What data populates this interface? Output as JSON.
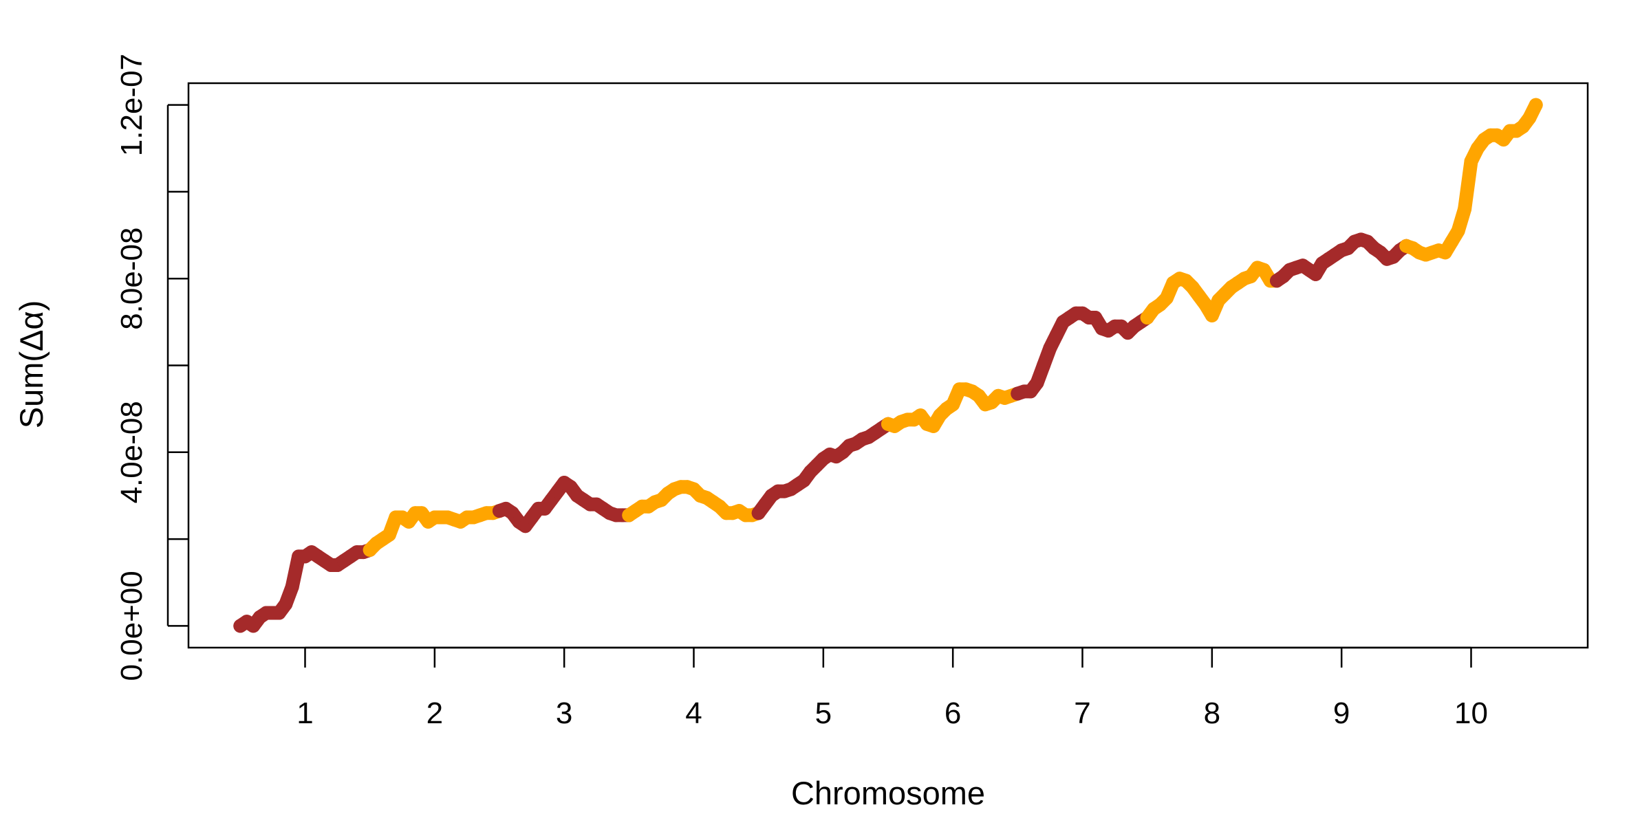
{
  "chart_data": {
    "type": "line",
    "xlabel": "Chromosome",
    "ylabel": "Sum(Δα)",
    "x_ticks": [
      "1",
      "2",
      "3",
      "4",
      "5",
      "6",
      "7",
      "8",
      "9",
      "10"
    ],
    "y_tick_values": [
      0,
      2e-08,
      4e-08,
      6e-08,
      8e-08,
      1e-07,
      1.2e-07
    ],
    "y_tick_labels": [
      "0.0e+00",
      "",
      "4.0e-08",
      "",
      "8.0e-08",
      "",
      "1.2e-07"
    ],
    "xlim": [
      0.1,
      10.9
    ],
    "ylim": [
      -5e-09,
      1.25e-07
    ],
    "colors": {
      "odd": "#A52A2A",
      "even": "#FFA500"
    },
    "grid": false,
    "legend": "none",
    "series": [
      {
        "chromosome": 1,
        "color": "#A52A2A",
        "x": [
          0.5,
          0.55,
          0.6,
          0.65,
          0.7,
          0.75,
          0.8,
          0.85,
          0.9,
          0.95,
          1.0,
          1.05,
          1.1,
          1.15,
          1.2,
          1.25,
          1.3,
          1.35,
          1.4,
          1.45,
          1.5
        ],
        "y": [
          0,
          1e-09,
          0,
          2e-09,
          3e-09,
          3e-09,
          3e-09,
          5e-09,
          9e-09,
          1.6e-08,
          1.6e-08,
          1.7e-08,
          1.6e-08,
          1.5e-08,
          1.4e-08,
          1.4e-08,
          1.5e-08,
          1.6e-08,
          1.7e-08,
          1.7e-08,
          1.75e-08
        ]
      },
      {
        "chromosome": 2,
        "color": "#FFA500",
        "x": [
          1.5,
          1.55,
          1.6,
          1.65,
          1.7,
          1.75,
          1.8,
          1.85,
          1.9,
          1.95,
          2.0,
          2.05,
          2.1,
          2.15,
          2.2,
          2.25,
          2.3,
          2.35,
          2.4,
          2.45,
          2.5
        ],
        "y": [
          1.75e-08,
          1.9e-08,
          2e-08,
          2.1e-08,
          2.5e-08,
          2.5e-08,
          2.4e-08,
          2.6e-08,
          2.6e-08,
          2.4e-08,
          2.5e-08,
          2.5e-08,
          2.5e-08,
          2.45e-08,
          2.4e-08,
          2.5e-08,
          2.5e-08,
          2.55e-08,
          2.6e-08,
          2.6e-08,
          2.65e-08
        ]
      },
      {
        "chromosome": 3,
        "color": "#A52A2A",
        "x": [
          2.5,
          2.55,
          2.6,
          2.65,
          2.7,
          2.75,
          2.8,
          2.85,
          2.9,
          2.95,
          3.0,
          3.05,
          3.1,
          3.15,
          3.2,
          3.25,
          3.3,
          3.35,
          3.4,
          3.45,
          3.5
        ],
        "y": [
          2.65e-08,
          2.7e-08,
          2.6e-08,
          2.4e-08,
          2.3e-08,
          2.5e-08,
          2.7e-08,
          2.7e-08,
          2.9e-08,
          3.1e-08,
          3.3e-08,
          3.2e-08,
          3e-08,
          2.9e-08,
          2.8e-08,
          2.8e-08,
          2.7e-08,
          2.6e-08,
          2.55e-08,
          2.55e-08,
          2.55e-08
        ]
      },
      {
        "chromosome": 4,
        "color": "#FFA500",
        "x": [
          3.5,
          3.55,
          3.6,
          3.65,
          3.7,
          3.75,
          3.8,
          3.85,
          3.9,
          3.95,
          4.0,
          4.05,
          4.1,
          4.15,
          4.2,
          4.25,
          4.3,
          4.35,
          4.4,
          4.45,
          4.5
        ],
        "y": [
          2.55e-08,
          2.65e-08,
          2.75e-08,
          2.75e-08,
          2.85e-08,
          2.9e-08,
          3.05e-08,
          3.15e-08,
          3.2e-08,
          3.2e-08,
          3.15e-08,
          3e-08,
          2.95e-08,
          2.85e-08,
          2.75e-08,
          2.6e-08,
          2.6e-08,
          2.65e-08,
          2.55e-08,
          2.55e-08,
          2.6e-08
        ]
      },
      {
        "chromosome": 5,
        "color": "#A52A2A",
        "x": [
          4.5,
          4.55,
          4.6,
          4.65,
          4.7,
          4.75,
          4.8,
          4.85,
          4.9,
          4.95,
          5.0,
          5.05,
          5.1,
          5.15,
          5.2,
          5.25,
          5.3,
          5.35,
          5.4,
          5.45,
          5.5
        ],
        "y": [
          2.6e-08,
          2.8e-08,
          3e-08,
          3.1e-08,
          3.1e-08,
          3.15e-08,
          3.25e-08,
          3.35e-08,
          3.55e-08,
          3.7e-08,
          3.85e-08,
          3.95e-08,
          3.9e-08,
          4e-08,
          4.15e-08,
          4.2e-08,
          4.3e-08,
          4.35e-08,
          4.45e-08,
          4.55e-08,
          4.65e-08
        ]
      },
      {
        "chromosome": 6,
        "color": "#FFA500",
        "x": [
          5.5,
          5.55,
          5.6,
          5.65,
          5.7,
          5.75,
          5.8,
          5.85,
          5.9,
          5.95,
          6.0,
          6.05,
          6.1,
          6.15,
          6.2,
          6.25,
          6.3,
          6.35,
          6.4,
          6.45,
          6.5
        ],
        "y": [
          4.65e-08,
          4.6e-08,
          4.7e-08,
          4.75e-08,
          4.75e-08,
          4.85e-08,
          4.65e-08,
          4.6e-08,
          4.85e-08,
          5e-08,
          5.1e-08,
          5.45e-08,
          5.45e-08,
          5.4e-08,
          5.3e-08,
          5.1e-08,
          5.15e-08,
          5.3e-08,
          5.25e-08,
          5.3e-08,
          5.35e-08
        ]
      },
      {
        "chromosome": 7,
        "color": "#A52A2A",
        "x": [
          6.5,
          6.55,
          6.6,
          6.65,
          6.7,
          6.75,
          6.8,
          6.85,
          6.9,
          6.95,
          7.0,
          7.05,
          7.1,
          7.15,
          7.2,
          7.25,
          7.3,
          7.35,
          7.4,
          7.45,
          7.5
        ],
        "y": [
          5.35e-08,
          5.4e-08,
          5.4e-08,
          5.6e-08,
          6e-08,
          6.4e-08,
          6.7e-08,
          7e-08,
          7.1e-08,
          7.2e-08,
          7.2e-08,
          7.1e-08,
          7.1e-08,
          6.85e-08,
          6.8e-08,
          6.9e-08,
          6.9e-08,
          6.75e-08,
          6.9e-08,
          7e-08,
          7.1e-08
        ]
      },
      {
        "chromosome": 8,
        "color": "#FFA500",
        "x": [
          7.5,
          7.55,
          7.6,
          7.65,
          7.7,
          7.75,
          7.8,
          7.85,
          7.9,
          7.95,
          8.0,
          8.05,
          8.1,
          8.15,
          8.2,
          8.25,
          8.3,
          8.35,
          8.4,
          8.45,
          8.5
        ],
        "y": [
          7.1e-08,
          7.3e-08,
          7.4e-08,
          7.55e-08,
          7.9e-08,
          8e-08,
          7.95e-08,
          7.8e-08,
          7.6e-08,
          7.4e-08,
          7.15e-08,
          7.5e-08,
          7.65e-08,
          7.8e-08,
          7.9e-08,
          8e-08,
          8.05e-08,
          8.25e-08,
          8.2e-08,
          7.95e-08,
          7.95e-08
        ]
      },
      {
        "chromosome": 9,
        "color": "#A52A2A",
        "x": [
          8.5,
          8.55,
          8.6,
          8.65,
          8.7,
          8.75,
          8.8,
          8.85,
          8.9,
          8.95,
          9.0,
          9.05,
          9.1,
          9.15,
          9.2,
          9.25,
          9.3,
          9.35,
          9.4,
          9.45,
          9.5
        ],
        "y": [
          7.95e-08,
          8.05e-08,
          8.2e-08,
          8.25e-08,
          8.3e-08,
          8.2e-08,
          8.1e-08,
          8.35e-08,
          8.45e-08,
          8.55e-08,
          8.65e-08,
          8.7e-08,
          8.85e-08,
          8.9e-08,
          8.85e-08,
          8.7e-08,
          8.6e-08,
          8.45e-08,
          8.5e-08,
          8.65e-08,
          8.75e-08
        ]
      },
      {
        "chromosome": 10,
        "color": "#FFA500",
        "x": [
          9.5,
          9.55,
          9.6,
          9.65,
          9.7,
          9.75,
          9.8,
          9.85,
          9.9,
          9.95,
          10.0,
          10.05,
          10.1,
          10.15,
          10.2,
          10.25,
          10.3,
          10.35,
          10.4,
          10.45,
          10.5
        ],
        "y": [
          8.75e-08,
          8.7e-08,
          8.6e-08,
          8.55e-08,
          8.6e-08,
          8.65e-08,
          8.6e-08,
          8.85e-08,
          9.1e-08,
          9.6e-08,
          1.07e-07,
          1.1e-07,
          1.12e-07,
          1.13e-07,
          1.13e-07,
          1.12e-07,
          1.14e-07,
          1.14e-07,
          1.15e-07,
          1.17e-07,
          1.2e-07
        ]
      }
    ]
  }
}
